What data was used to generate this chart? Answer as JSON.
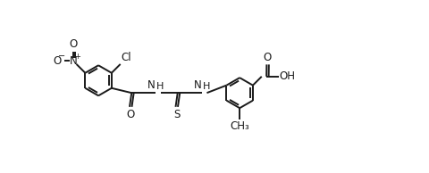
{
  "bg_color": "#ffffff",
  "line_color": "#1a1a1a",
  "line_width": 1.4,
  "font_size": 8.5,
  "fig_width": 4.8,
  "fig_height": 1.94,
  "ring_r": 0.38,
  "xlim": [
    0.0,
    9.8
  ],
  "ylim": [
    -0.5,
    3.8
  ]
}
